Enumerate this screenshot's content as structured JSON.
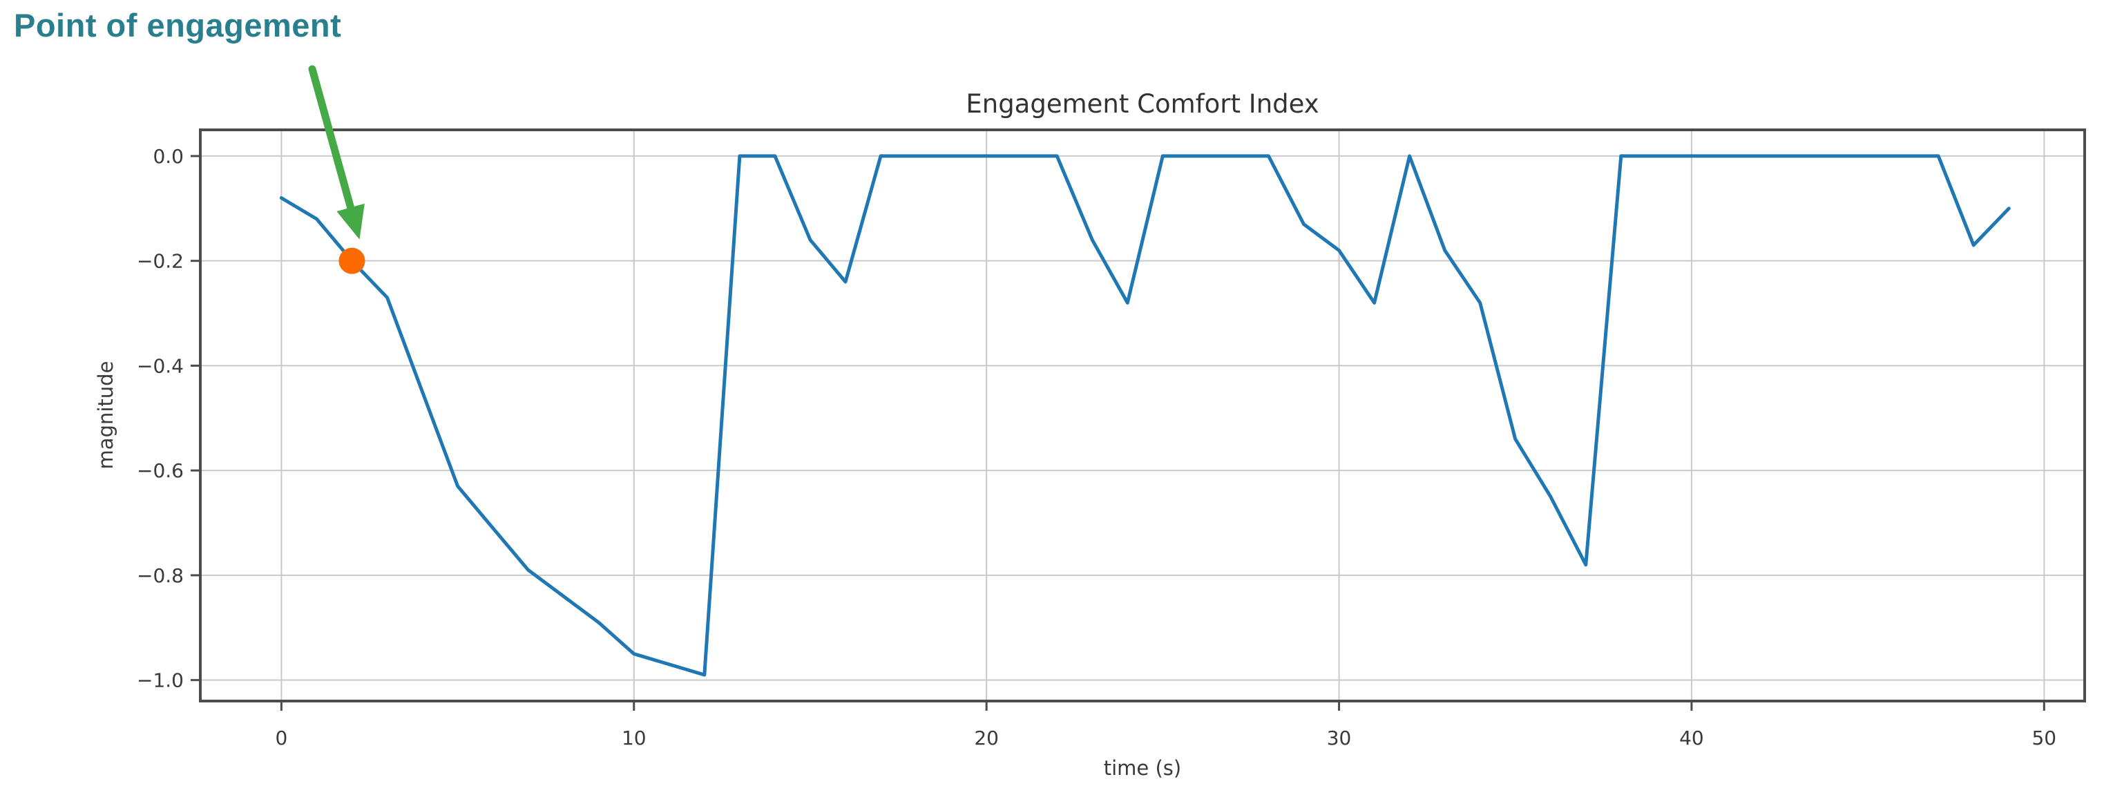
{
  "page": {
    "background_color": "#ffffff"
  },
  "annotation": {
    "label": "Point of engagement",
    "text_color": "#2a7f8e",
    "arrow_color": "#45a945",
    "point_color": "#fd6a02",
    "points_at": {
      "time": 2,
      "magnitude": -0.2
    }
  },
  "chart_data": {
    "type": "line",
    "title": "Engagement Comfort Index",
    "xlabel": "time (s)",
    "ylabel": "magnitude",
    "legend": null,
    "grid": true,
    "series_name": "magnitude",
    "series_color": "#1f77b4",
    "x": [
      0,
      1,
      2,
      3,
      4,
      5,
      6,
      7,
      8,
      9,
      10,
      11,
      12,
      13,
      14,
      15,
      16,
      17,
      18,
      19,
      20,
      21,
      22,
      23,
      24,
      25,
      26,
      27,
      28,
      29,
      30,
      31,
      32,
      33,
      34,
      35,
      36,
      37,
      38,
      39,
      40,
      41,
      42,
      43,
      44,
      45,
      46,
      47,
      48,
      49
    ],
    "values": [
      -0.08,
      -0.12,
      -0.2,
      -0.27,
      -0.45,
      -0.63,
      -0.71,
      -0.79,
      -0.84,
      -0.89,
      -0.95,
      -0.97,
      -0.99,
      0,
      0,
      -0.16,
      -0.24,
      0,
      0,
      0,
      0,
      0,
      0,
      -0.16,
      -0.28,
      0,
      0,
      0,
      0,
      -0.13,
      -0.18,
      -0.28,
      0,
      -0.18,
      -0.28,
      -0.54,
      -0.65,
      -0.78,
      0,
      0,
      0,
      0,
      0,
      0,
      0,
      0,
      0,
      0,
      -0.17,
      -0.1
    ],
    "marked_point": {
      "x": 2,
      "y": -0.2
    },
    "xticks": [
      0,
      10,
      20,
      30,
      40,
      50
    ],
    "yticks": [
      0.0,
      -0.2,
      -0.4,
      -0.6,
      -0.8,
      -1.0
    ],
    "xlim": [
      -2.3,
      51.15
    ],
    "ylim": [
      -1.04,
      0.05
    ],
    "axis_colors": {
      "spine": "#4c4c4c",
      "gridline": "#c9c9c9",
      "tick_label": "#3a3a3a",
      "title": "#333333"
    }
  }
}
